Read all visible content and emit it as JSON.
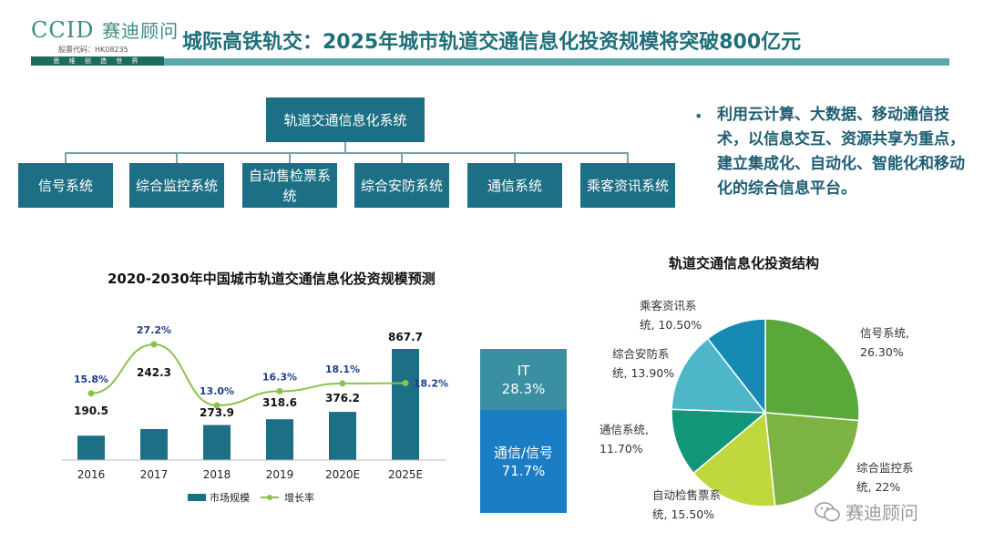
{
  "logo": {
    "brand": "CCID",
    "brand_cn": "赛迪顾问",
    "stock": "股票代码：HK08235",
    "slogan": "思 维 创 造 世 界"
  },
  "header": {
    "title": "城际高铁轨交：2025年城市轨道交通信息化投资规模将突破800亿元"
  },
  "diagram": {
    "root": "轨道交通信息化系统",
    "children": [
      "信号系统",
      "综合监控系统",
      "自动售检票系统",
      "综合安防系统",
      "通信系统",
      "乘客资讯系统"
    ]
  },
  "bullet": {
    "text": "利用云计算、大数据、移动通信技术，以信息交互、资源共享为重点，建立集成化、自动化、智能化和移动化的综合信息平台。"
  },
  "colors": {
    "primary": "#1c6f84",
    "title": "#1e6f7a",
    "line": "#8bc34a"
  },
  "bar_title": "2020-2030年中国城市轨道交通信息化投资规模预测",
  "pie_title": "轨道交通信息化投资结构",
  "watermark": "赛迪顾问",
  "chart_data": [
    {
      "type": "bar",
      "title": "2020-2030年中国城市轨道交通信息化投资规模预测",
      "categories": [
        "2016",
        "2017",
        "2018",
        "2019",
        "2020E",
        "2025E"
      ],
      "series": [
        {
          "name": "市场规模",
          "type": "bar",
          "values": [
            190.5,
            242.3,
            273.9,
            318.6,
            376.2,
            867.7
          ],
          "color": "#1c6f84"
        },
        {
          "name": "增长率",
          "type": "line",
          "values": [
            15.8,
            27.2,
            13.0,
            16.3,
            18.1,
            18.2
          ],
          "labels": [
            "15.8%",
            "27.2%",
            "13.0%",
            "16.3%",
            "18.1%",
            "18.2%"
          ],
          "color": "#8bc34a"
        }
      ],
      "bar_labels": [
        "190.5",
        "242.3",
        "273.9",
        "318.6",
        "376.2",
        "867.7"
      ],
      "legend": [
        "市场规模",
        "增长率"
      ],
      "legend_position": "bottom"
    },
    {
      "type": "bar",
      "stacked": true,
      "categories": [
        ""
      ],
      "series": [
        {
          "name": "IT",
          "values": [
            28.3
          ],
          "label": "28.3%",
          "color": "#3a8fa0"
        },
        {
          "name": "通信/信号",
          "values": [
            71.7
          ],
          "label": "71.7%",
          "color": "#1b7dc4"
        }
      ]
    },
    {
      "type": "pie",
      "title": "轨道交通信息化投资结构",
      "slices": [
        {
          "label_lines": [
            "信号系统,",
            "26.30%"
          ],
          "value": 26.3,
          "color": "#5aa83a"
        },
        {
          "label_lines": [
            "综合监控系",
            "统, 22%"
          ],
          "value": 22.0,
          "color": "#7cb342"
        },
        {
          "label_lines": [
            "自动检售票系",
            "统, 15.50%"
          ],
          "value": 15.5,
          "color": "#c0d83e"
        },
        {
          "label_lines": [
            "通信系统,",
            "11.70%"
          ],
          "value": 11.7,
          "color": "#12967a"
        },
        {
          "label_lines": [
            "综合安防系",
            "统, 13.90%"
          ],
          "value": 13.9,
          "color": "#4db6c8"
        },
        {
          "label_lines": [
            "乘客资讯系",
            "统, 10.50%"
          ],
          "value": 10.5,
          "color": "#1689b5"
        }
      ]
    }
  ]
}
